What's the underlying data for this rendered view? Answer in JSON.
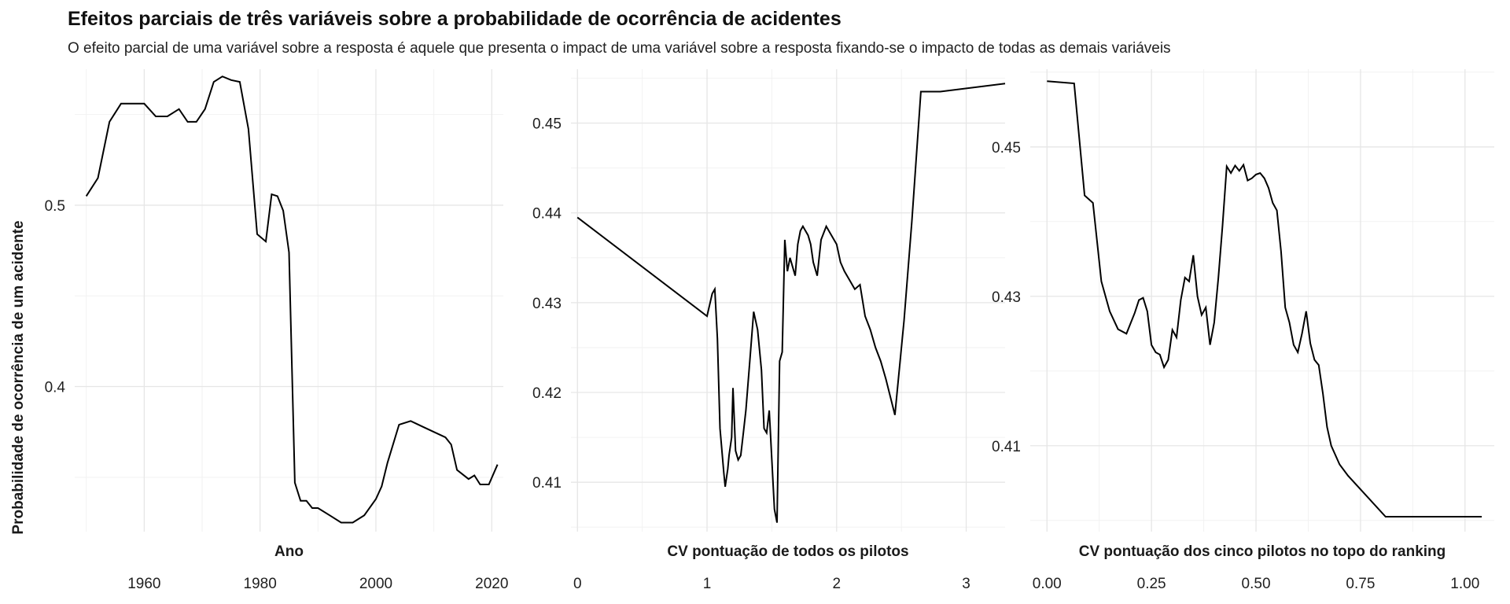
{
  "title": "Efeitos parciais de três variáveis sobre a probabilidade de ocorrência de acidentes",
  "subtitle": "O efeito parcial de uma variável sobre a resposta é aquele que presenta o impact de uma variável sobre a resposta fixando-se o impacto de todas as demais variáveis",
  "ylabel": "Probabilidade de ocorrência de um acidente",
  "colors": {
    "line": "#000000",
    "grid_major": "#e6e6e6",
    "grid_minor": "#f2f2f2"
  },
  "chart_data": [
    {
      "type": "line",
      "xlabel": "Ano",
      "xlim": [
        1948,
        2022
      ],
      "ylim": [
        0.32,
        0.575
      ],
      "xticks": [
        1960,
        1980,
        2000,
        2020
      ],
      "xtick_labels": [
        "1960",
        "1980",
        "2000",
        "2020"
      ],
      "yticks": [
        0.4,
        0.5
      ],
      "ytick_labels": [
        "0.4",
        "0.5"
      ],
      "grid": true,
      "x": [
        1950,
        1952,
        1954,
        1956,
        1958,
        1960,
        1962,
        1964,
        1966,
        1967.5,
        1969,
        1970.5,
        1972,
        1973.5,
        1975,
        1976.5,
        1978,
        1979.5,
        1981,
        1982,
        1983,
        1984,
        1985,
        1986,
        1987,
        1988,
        1989,
        1990,
        1992,
        1994,
        1996,
        1998,
        2000,
        2001,
        2002,
        2004,
        2006,
        2008,
        2010,
        2012,
        2013,
        2014,
        2016,
        2017,
        2018,
        2019.5,
        2021
      ],
      "values": [
        0.505,
        0.515,
        0.546,
        0.556,
        0.556,
        0.556,
        0.549,
        0.549,
        0.553,
        0.546,
        0.546,
        0.553,
        0.568,
        0.571,
        0.569,
        0.568,
        0.542,
        0.484,
        0.48,
        0.506,
        0.505,
        0.497,
        0.474,
        0.347,
        0.337,
        0.337,
        0.333,
        0.333,
        0.329,
        0.325,
        0.325,
        0.329,
        0.338,
        0.345,
        0.358,
        0.379,
        0.381,
        0.378,
        0.375,
        0.372,
        0.368,
        0.354,
        0.349,
        0.351,
        0.346,
        0.346,
        0.357
      ]
    },
    {
      "type": "line",
      "xlabel": "CV pontuação de todos os pilotos",
      "xlim": [
        -0.05,
        3.3
      ],
      "ylim": [
        0.4045,
        0.456
      ],
      "xticks": [
        0,
        1,
        2,
        3
      ],
      "xtick_labels": [
        "0",
        "1",
        "2",
        "3"
      ],
      "yticks": [
        0.41,
        0.42,
        0.43,
        0.44,
        0.45
      ],
      "ytick_labels": [
        "0.41",
        "0.42",
        "0.43",
        "0.44",
        "0.45"
      ],
      "grid": true,
      "x": [
        0,
        1.0,
        1.04,
        1.06,
        1.08,
        1.1,
        1.13,
        1.14,
        1.16,
        1.17,
        1.19,
        1.2,
        1.22,
        1.24,
        1.26,
        1.28,
        1.3,
        1.33,
        1.36,
        1.39,
        1.42,
        1.44,
        1.46,
        1.48,
        1.5,
        1.52,
        1.54,
        1.56,
        1.58,
        1.6,
        1.62,
        1.64,
        1.66,
        1.68,
        1.7,
        1.72,
        1.74,
        1.76,
        1.78,
        1.8,
        1.82,
        1.85,
        1.88,
        1.92,
        1.96,
        2.0,
        2.03,
        2.06,
        2.1,
        2.14,
        2.18,
        2.22,
        2.26,
        2.3,
        2.34,
        2.38,
        2.45,
        2.52,
        2.58,
        2.65,
        2.8,
        3.3
      ],
      "values": [
        0.4395,
        0.4285,
        0.431,
        0.4315,
        0.426,
        0.416,
        0.411,
        0.4095,
        0.4115,
        0.413,
        0.415,
        0.4205,
        0.4135,
        0.4125,
        0.413,
        0.4155,
        0.418,
        0.4235,
        0.429,
        0.427,
        0.4225,
        0.416,
        0.4155,
        0.418,
        0.4125,
        0.407,
        0.4055,
        0.4235,
        0.4245,
        0.437,
        0.4335,
        0.435,
        0.434,
        0.433,
        0.4365,
        0.438,
        0.4385,
        0.438,
        0.4375,
        0.4365,
        0.4345,
        0.433,
        0.437,
        0.4385,
        0.4375,
        0.4365,
        0.4345,
        0.4335,
        0.4325,
        0.4315,
        0.432,
        0.4285,
        0.427,
        0.425,
        0.4235,
        0.4215,
        0.4175,
        0.428,
        0.439,
        0.4535,
        0.4535,
        0.4544
      ]
    },
    {
      "type": "line",
      "xlabel": "CV pontuação dos cinco pilotos no topo do ranking",
      "xlim": [
        -0.04,
        1.07
      ],
      "ylim": [
        0.3985,
        0.4604
      ],
      "xticks": [
        0.0,
        0.25,
        0.5,
        0.75,
        1.0
      ],
      "xtick_labels": [
        "0.00",
        "0.25",
        "0.50",
        "0.75",
        "1.00"
      ],
      "yticks": [
        0.41,
        0.43,
        0.45
      ],
      "ytick_labels": [
        "0.41",
        "0.43",
        "0.45"
      ],
      "grid": true,
      "x": [
        0.0,
        0.065,
        0.09,
        0.11,
        0.13,
        0.15,
        0.17,
        0.19,
        0.21,
        0.22,
        0.23,
        0.24,
        0.25,
        0.26,
        0.27,
        0.28,
        0.29,
        0.3,
        0.31,
        0.32,
        0.33,
        0.34,
        0.35,
        0.36,
        0.37,
        0.38,
        0.39,
        0.4,
        0.41,
        0.42,
        0.43,
        0.44,
        0.45,
        0.46,
        0.47,
        0.48,
        0.49,
        0.5,
        0.51,
        0.52,
        0.53,
        0.54,
        0.55,
        0.56,
        0.57,
        0.58,
        0.59,
        0.6,
        0.61,
        0.62,
        0.63,
        0.64,
        0.65,
        0.66,
        0.67,
        0.68,
        0.7,
        0.72,
        0.81,
        1.04
      ],
      "values": [
        0.4588,
        0.4585,
        0.4435,
        0.4425,
        0.432,
        0.428,
        0.4256,
        0.425,
        0.4278,
        0.4295,
        0.4298,
        0.428,
        0.4235,
        0.4225,
        0.4222,
        0.4205,
        0.4215,
        0.4255,
        0.4245,
        0.4295,
        0.4325,
        0.432,
        0.4355,
        0.43,
        0.4275,
        0.4285,
        0.4235,
        0.4265,
        0.4325,
        0.4395,
        0.4474,
        0.4465,
        0.4475,
        0.4468,
        0.4476,
        0.4455,
        0.4458,
        0.4463,
        0.4465,
        0.4458,
        0.4445,
        0.4425,
        0.4415,
        0.436,
        0.4285,
        0.4265,
        0.4235,
        0.4225,
        0.425,
        0.428,
        0.4237,
        0.4215,
        0.4208,
        0.417,
        0.4125,
        0.41,
        0.4075,
        0.406,
        0.4005,
        0.4005
      ]
    }
  ]
}
